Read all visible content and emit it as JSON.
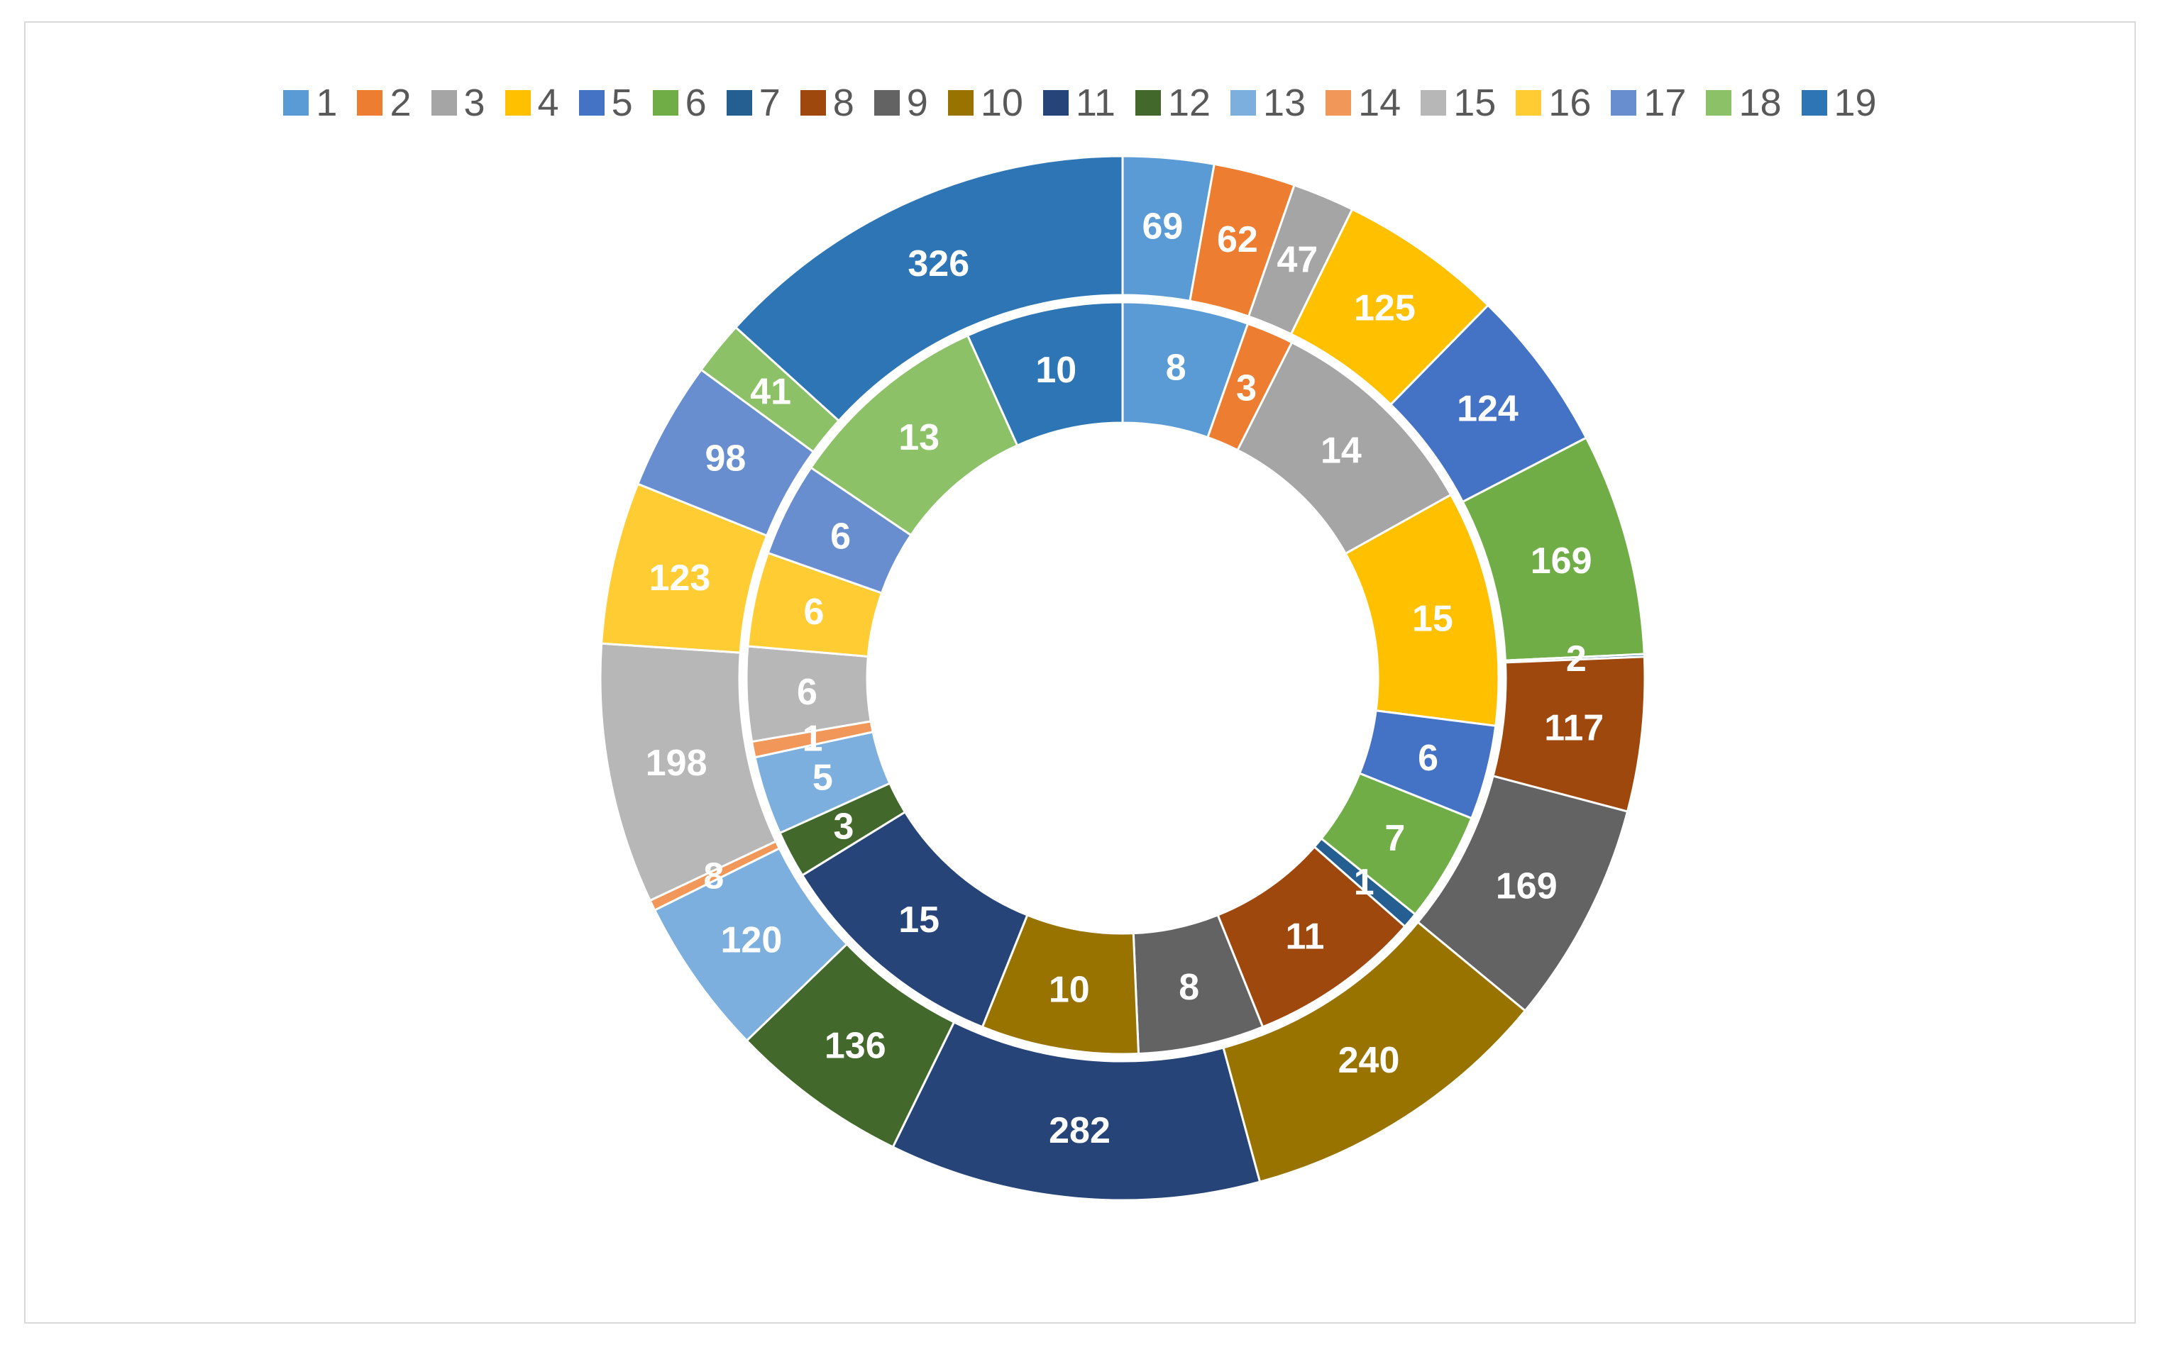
{
  "chart_data": {
    "type": "donut",
    "categories": [
      "1",
      "2",
      "3",
      "4",
      "5",
      "6",
      "7",
      "8",
      "9",
      "10",
      "11",
      "12",
      "13",
      "14",
      "15",
      "16",
      "17",
      "18",
      "19"
    ],
    "colors": [
      "#5B9BD5",
      "#ED7D31",
      "#A5A5A5",
      "#FFC000",
      "#4472C4",
      "#70AD47",
      "#255E91",
      "#9E480E",
      "#636363",
      "#997300",
      "#264478",
      "#43682B",
      "#7CAFDD",
      "#F1975A",
      "#B7B7B7",
      "#FFCD33",
      "#698ED0",
      "#8CC168",
      "#2E75B6"
    ],
    "series": [
      {
        "ring": "inner",
        "values": [
          8,
          3,
          14,
          15,
          6,
          7,
          1,
          11,
          8,
          10,
          15,
          3,
          5,
          1,
          6,
          6,
          6,
          13,
          10
        ]
      },
      {
        "ring": "outer",
        "values": [
          69,
          62,
          47,
          125,
          124,
          169,
          2,
          117,
          169,
          240,
          282,
          136,
          120,
          8,
          198,
          123,
          98,
          41,
          326
        ]
      }
    ],
    "title": "",
    "legend_position": "top"
  }
}
